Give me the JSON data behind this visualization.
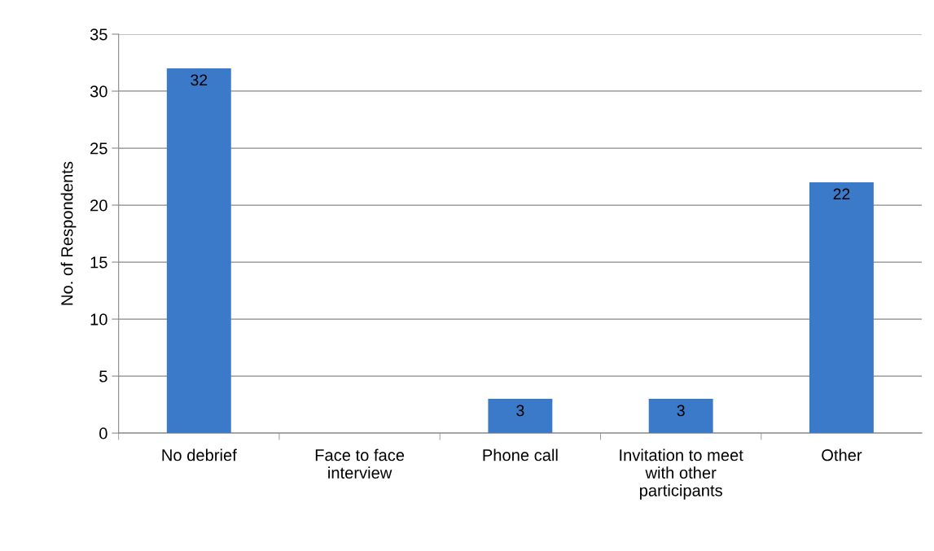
{
  "chart_data": {
    "type": "bar",
    "ylabel": "No. of Respondents",
    "categories": [
      "No debrief",
      "Face to face\ninterview",
      "Phone call",
      "Invitation to meet\nwith other\nparticipants",
      "Other"
    ],
    "values": [
      32,
      0,
      3,
      3,
      22
    ],
    "value_labels": [
      "32",
      null,
      "3",
      "3",
      "22"
    ],
    "color": "#3b7ac9",
    "ylim": [
      0,
      35
    ],
    "yticks": [
      0,
      5,
      10,
      15,
      20,
      25,
      30,
      35
    ],
    "grid": "y",
    "legend": false
  }
}
